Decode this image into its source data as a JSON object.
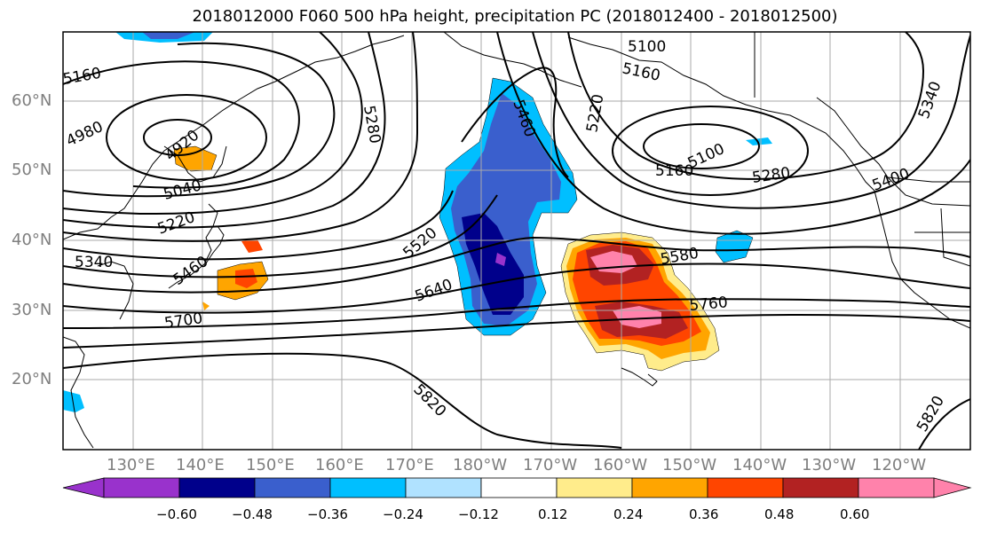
{
  "title": "2018012000 F060 500 hPa height, precipitation PC (2018012400 - 2018012500)",
  "lat_labels": [
    "60°N",
    "50°N",
    "40°N",
    "30°N",
    "20°N"
  ],
  "lon_labels": [
    "130°E",
    "140°E",
    "150°E",
    "160°E",
    "170°E",
    "180°W",
    "170°W",
    "160°W",
    "150°W",
    "140°W",
    "130°W",
    "120°W"
  ],
  "colorbar": {
    "tick_labels": [
      "−0.60",
      "−0.48",
      "−0.36",
      "−0.24",
      "−0.12",
      "0.12",
      "0.24",
      "0.36",
      "0.48",
      "0.60"
    ],
    "colors": [
      "#9932cc",
      "#00008b",
      "#3a5fcd",
      "#00bfff",
      "#b0e2ff",
      "#ffffff",
      "#ffec8b",
      "#ffa500",
      "#ff4500",
      "#b22222",
      "#ff82ab"
    ]
  },
  "contour_labels": [
    "5100",
    "5160",
    "5220",
    "5280",
    "5460",
    "4980",
    "4920",
    "5040",
    "5220",
    "5340",
    "5460",
    "5520",
    "5640",
    "5700",
    "5580",
    "5760",
    "5820",
    "5820",
    "5160",
    "5100",
    "5280",
    "5340",
    "5400",
    "5160"
  ]
}
